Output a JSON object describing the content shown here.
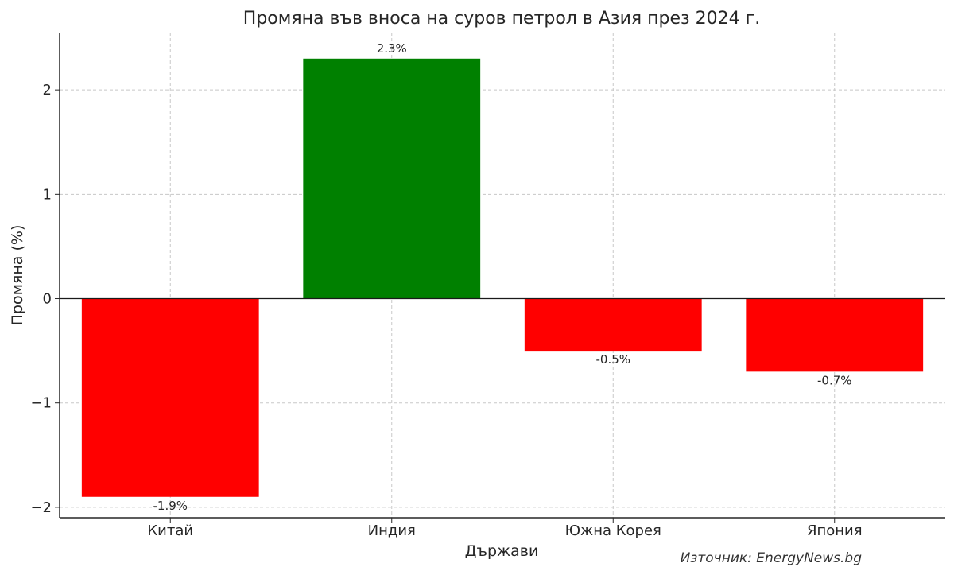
{
  "chart_data": {
    "type": "bar",
    "title": "Промяна във вноса на суров петрол в Азия през 2024 г.",
    "xlabel": "Държави",
    "ylabel": "Промяна (%)",
    "categories": [
      "Китай",
      "Индия",
      "Южна Корея",
      "Япония"
    ],
    "values": [
      -1.9,
      2.3,
      -0.5,
      -0.7
    ],
    "data_labels": [
      "-1.9%",
      "2.3%",
      "-0.5%",
      "-0.7%"
    ],
    "colors": [
      "#ff0000",
      "#008000",
      "#ff0000",
      "#ff0000"
    ],
    "ylim": [
      -2.1,
      2.55
    ],
    "yticks": [
      -2,
      -1,
      0,
      1,
      2
    ],
    "ytick_labels": [
      "−2",
      "−1",
      "0",
      "1",
      "2"
    ],
    "grid": true,
    "zero_line": true,
    "source": "Източник: EnergyNews.bg"
  }
}
